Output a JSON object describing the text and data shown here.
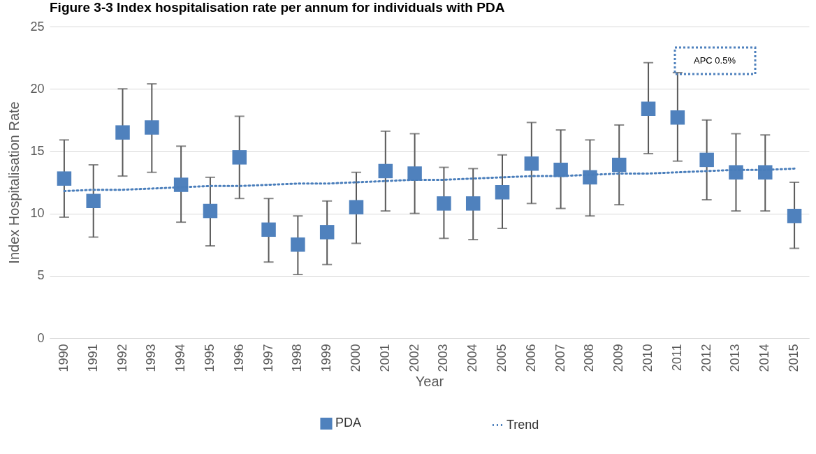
{
  "chart_data": {
    "type": "scatter",
    "title": "Figure 3-3 Index hospitalisation rate per annum for individuals with PDA",
    "xlabel": "Year",
    "ylabel": "Index Hospitalisation Rate",
    "categories": [
      "1990",
      "1991",
      "1992",
      "1993",
      "1994",
      "1995",
      "1996",
      "1997",
      "1998",
      "1999",
      "2000",
      "2001",
      "2002",
      "2003",
      "2004",
      "2005",
      "2006",
      "2007",
      "2008",
      "2009",
      "2010",
      "2011",
      "2012",
      "2013",
      "2014",
      "2015"
    ],
    "ylim": [
      0,
      25
    ],
    "yticks": [
      0,
      5,
      10,
      15,
      20,
      25
    ],
    "grid": "y",
    "legend": "bottom",
    "marker": "square",
    "annotations": [
      "APC 0.5%"
    ],
    "series": [
      {
        "name": "PDA",
        "color": "#4f81bd",
        "values": [
          12.8,
          11.0,
          16.5,
          16.9,
          12.3,
          10.2,
          14.5,
          8.7,
          7.5,
          8.5,
          10.5,
          13.4,
          13.2,
          10.8,
          10.8,
          11.7,
          14.0,
          13.5,
          12.9,
          13.9,
          18.4,
          17.7,
          14.3,
          13.3,
          13.3,
          9.8
        ],
        "errors": [
          [
            9.7,
            15.9
          ],
          [
            8.1,
            13.9
          ],
          [
            13.0,
            20.0
          ],
          [
            13.3,
            20.4
          ],
          [
            9.3,
            15.4
          ],
          [
            7.4,
            12.9
          ],
          [
            11.2,
            17.8
          ],
          [
            6.1,
            11.2
          ],
          [
            5.1,
            9.8
          ],
          [
            5.9,
            11.0
          ],
          [
            7.6,
            13.3
          ],
          [
            10.2,
            16.6
          ],
          [
            10.0,
            16.4
          ],
          [
            8.0,
            13.7
          ],
          [
            7.9,
            13.6
          ],
          [
            8.8,
            14.7
          ],
          [
            10.8,
            17.3
          ],
          [
            10.4,
            16.7
          ],
          [
            9.8,
            15.9
          ],
          [
            10.7,
            17.1
          ],
          [
            14.8,
            22.1
          ],
          [
            14.2,
            21.3
          ],
          [
            11.1,
            17.5
          ],
          [
            10.2,
            16.4
          ],
          [
            10.2,
            16.3
          ],
          [
            7.2,
            12.5
          ]
        ]
      },
      {
        "name": "Trend",
        "type": "line",
        "color": "#4a7ebb",
        "line_style": "dotted",
        "marker": "none",
        "values": [
          11.8,
          11.9,
          11.9,
          12.0,
          12.1,
          12.2,
          12.2,
          12.3,
          12.4,
          12.4,
          12.5,
          12.6,
          12.7,
          12.7,
          12.8,
          12.9,
          13.0,
          13.0,
          13.1,
          13.2,
          13.2,
          13.3,
          13.4,
          13.5,
          13.5,
          13.6
        ]
      }
    ]
  }
}
